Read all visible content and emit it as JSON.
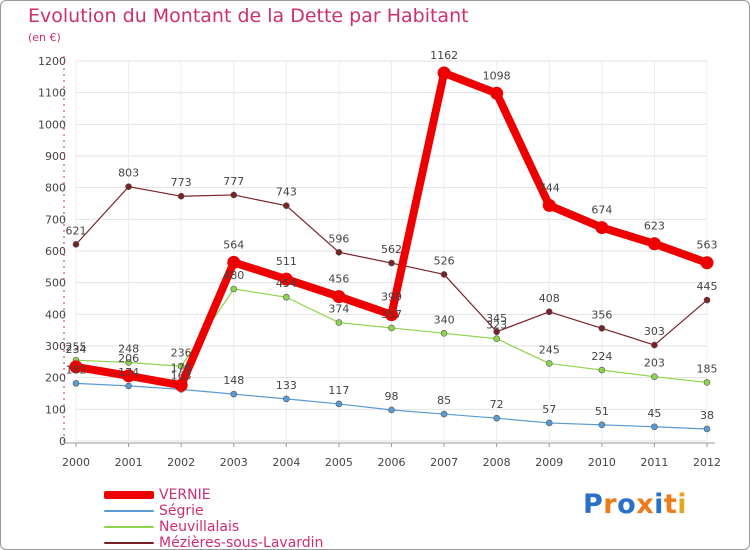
{
  "title": "Evolution du Montant de la Dette par Habitant",
  "subtitle": "(en €)",
  "logo_text": "Proxiti",
  "logo_letter_colors": [
    "#2a6fc9",
    "#ee7a1a",
    "#2a6fc9",
    "#ee7a1a",
    "#2a6fc9",
    "#ee7a1a",
    "#ddaa22"
  ],
  "chart_data": {
    "type": "line",
    "x": [
      "2000",
      "2001",
      "2002",
      "2003",
      "2004",
      "2005",
      "2006",
      "2007",
      "2008",
      "2009",
      "2010",
      "2011",
      "2012"
    ],
    "ylim": [
      0,
      1200
    ],
    "yticks": [
      0,
      100,
      200,
      300,
      400,
      500,
      600,
      700,
      800,
      900,
      1000,
      1100,
      1200
    ],
    "grid": true,
    "legend_position": "bottom",
    "series": [
      {
        "name": "Mézières-sous-Lavardin",
        "color": "#7a2226",
        "values": [
          621,
          803,
          773,
          777,
          743,
          596,
          562,
          526,
          345,
          408,
          356,
          303,
          445
        ]
      },
      {
        "name": "Ségrie",
        "color": "#5b9bd5",
        "values": [
          182,
          174,
          163,
          148,
          133,
          117,
          98,
          85,
          72,
          57,
          51,
          45,
          38
        ]
      },
      {
        "name": "Neuvillalais",
        "color": "#8fd44e",
        "values": [
          255,
          248,
          236,
          480,
          454,
          374,
          357,
          340,
          323,
          245,
          224,
          203,
          185
        ]
      },
      {
        "name": "VERNIE",
        "color": "#ee0000",
        "values": [
          234,
          206,
          176,
          564,
          511,
          456,
          399,
          1162,
          1098,
          744,
          674,
          623,
          563
        ]
      }
    ],
    "point_labels": {
      "Mézières-sous-Lavardin": [
        "621",
        "803",
        "773",
        "777",
        "743",
        "596",
        "562",
        "526",
        "345",
        "408",
        "356",
        "303",
        "445"
      ],
      "Ségrie": [
        "182",
        "174",
        "163",
        "148",
        "133",
        "117",
        "98",
        "85",
        "72",
        "57",
        "51",
        "45",
        "38"
      ],
      "Neuvillalais": [
        "255",
        "248",
        "236",
        "480",
        "454",
        "374",
        "357",
        "340",
        "323",
        "245",
        "224",
        "203",
        "185"
      ],
      "VERNIE": [
        "234",
        "206",
        "176",
        "564",
        "511",
        "456",
        "399",
        "1162",
        "1098",
        "744",
        "674",
        "623",
        "563"
      ]
    }
  },
  "legend": [
    {
      "name": "VERNIE",
      "color": "#ee0000"
    },
    {
      "name": "Ségrie",
      "color": "#5b9bd5"
    },
    {
      "name": "Neuvillalais",
      "color": "#8fd44e"
    },
    {
      "name": "Mézières-sous-Lavardin",
      "color": "#7a2226"
    }
  ]
}
